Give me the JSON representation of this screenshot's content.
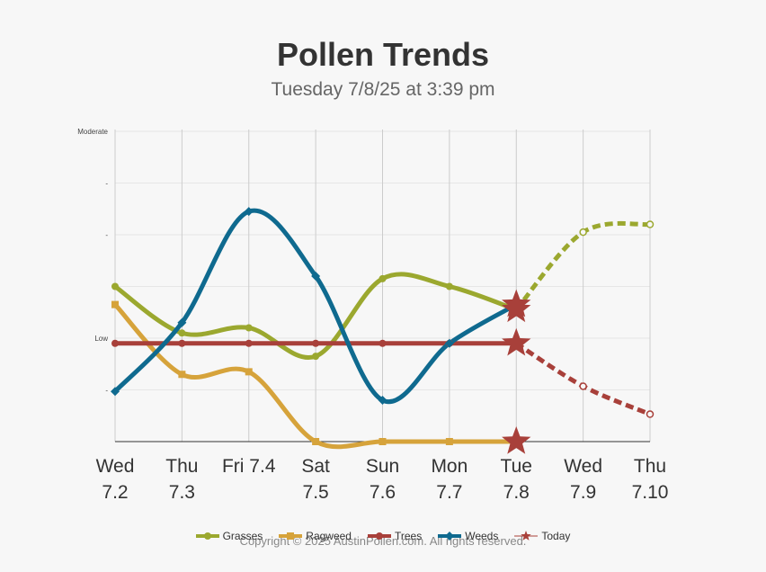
{
  "title": "Pollen Trends",
  "subtitle": "Tuesday 7/8/25 at 3:39 pm",
  "copyright": "Copyright © 2025 AustinPollen.com.  All rights reserved.",
  "chart_data": {
    "type": "line",
    "x": [
      "Wed 7.2",
      "Thu 7.3",
      "Fri 7.4",
      "Sat 7.5",
      "Sun 7.6",
      "Mon 7.7",
      "Tue 7.8",
      "Wed 7.9",
      "Thu 7.10"
    ],
    "x_labels": [
      [
        "Wed",
        "7.2"
      ],
      [
        "Thu",
        "7.3"
      ],
      [
        "Fri 7.4",
        ""
      ],
      [
        "Sat",
        "7.5"
      ],
      [
        "Sun",
        "7.6"
      ],
      [
        "Mon",
        "7.7"
      ],
      [
        "Tue",
        "7.8"
      ],
      [
        "Wed",
        "7.9"
      ],
      [
        "Thu",
        "7.10"
      ]
    ],
    "ylim": [
      0,
      6
    ],
    "y_ticks": [
      {
        "value": 6,
        "label": "Moderate"
      },
      {
        "value": 5,
        "label": "-"
      },
      {
        "value": 4,
        "label": "-"
      },
      {
        "value": 3,
        "label": ""
      },
      {
        "value": 2,
        "label": "Low"
      },
      {
        "value": 1,
        "label": "-"
      }
    ],
    "grid": true,
    "legend_position": "bottom",
    "today_index": 6,
    "forecast_start_index": 6,
    "series": [
      {
        "name": "Grasses",
        "color": "#9ba82f",
        "marker": "circle",
        "values": [
          3.0,
          2.1,
          2.2,
          1.65,
          3.15,
          3.0,
          2.55,
          4.05,
          4.2
        ]
      },
      {
        "name": "Ragweed",
        "color": "#d6a33b",
        "marker": "square",
        "values": [
          2.65,
          1.3,
          1.35,
          0.0,
          0.0,
          0.0,
          0.0,
          null,
          null
        ]
      },
      {
        "name": "Trees",
        "color": "#a8403a",
        "marker": "circle",
        "values": [
          1.9,
          1.9,
          1.9,
          1.9,
          1.9,
          1.9,
          1.9,
          1.07,
          0.53
        ]
      },
      {
        "name": "Weeds",
        "color": "#0f6a8f",
        "marker": "diamond",
        "values": [
          0.97,
          2.3,
          4.45,
          3.2,
          0.8,
          1.9,
          2.65,
          null,
          null
        ]
      }
    ],
    "legend": [
      {
        "name": "Grasses",
        "color": "#9ba82f",
        "marker": "circle"
      },
      {
        "name": "Ragweed",
        "color": "#d6a33b",
        "marker": "square"
      },
      {
        "name": "Trees",
        "color": "#a8403a",
        "marker": "circle"
      },
      {
        "name": "Weeds",
        "color": "#0f6a8f",
        "marker": "diamond"
      },
      {
        "name": "Today",
        "color": "#a8403a",
        "marker": "star"
      }
    ]
  }
}
